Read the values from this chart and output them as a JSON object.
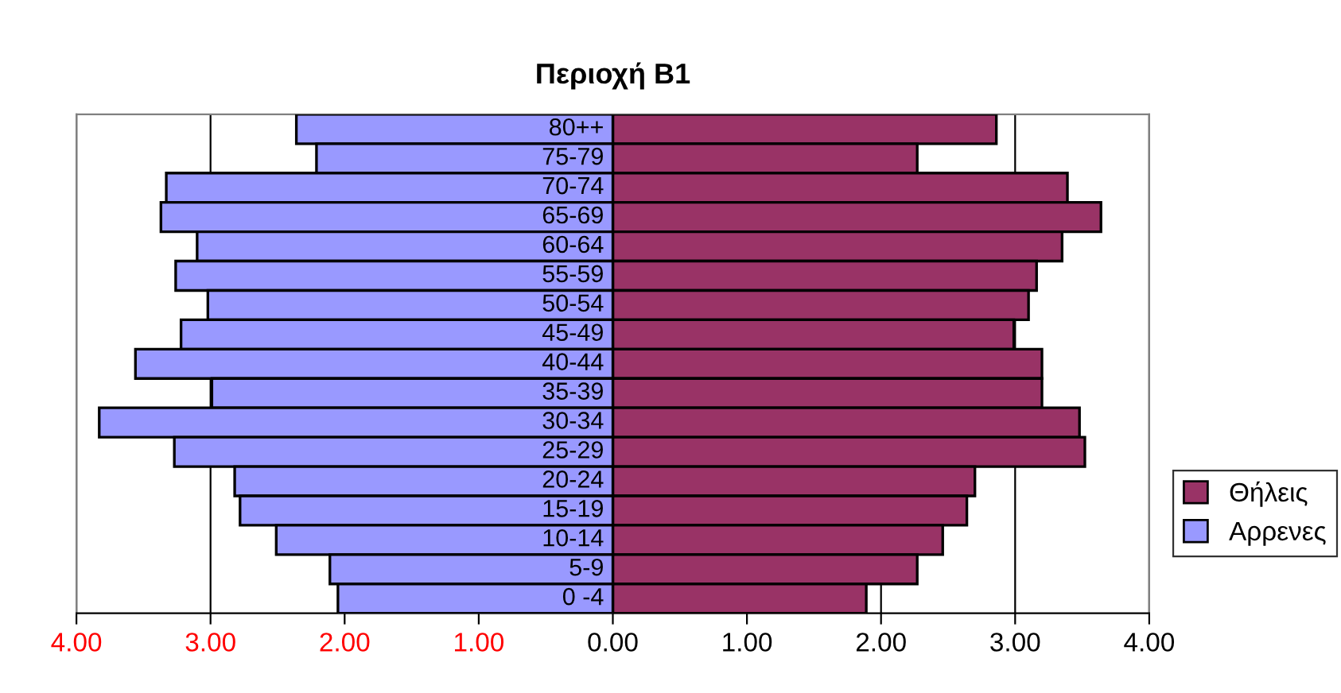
{
  "chart_data": {
    "type": "bar",
    "title": "Περιοχή Β1",
    "orientation": "horizontal",
    "categories": [
      "80++",
      "75-79",
      "70-74",
      "65-69",
      "60-64",
      "55-59",
      "50-54",
      "45-49",
      "40-44",
      "35-39",
      "30-34",
      "25-29",
      "20-24",
      "15-19",
      "10-14",
      "5-9",
      "0 -4"
    ],
    "series": [
      {
        "name": "Θήλεις",
        "color": "#993366",
        "values": [
          2.86,
          2.27,
          3.39,
          3.64,
          3.35,
          3.16,
          3.1,
          2.99,
          3.2,
          3.2,
          3.48,
          3.52,
          2.7,
          2.64,
          2.46,
          2.27,
          1.89
        ]
      },
      {
        "name": "Αρρενες",
        "color": "#9999ff",
        "values": [
          -2.36,
          -2.21,
          -3.33,
          -3.37,
          -3.1,
          -3.26,
          -3.02,
          -3.22,
          -3.56,
          -2.99,
          -3.83,
          -3.27,
          -2.82,
          -2.78,
          -2.51,
          -2.11,
          -2.05
        ]
      }
    ],
    "xlim": [
      -4,
      4
    ],
    "xticks": [
      {
        "value": -4,
        "label": "4.00"
      },
      {
        "value": -3,
        "label": "3.00"
      },
      {
        "value": -2,
        "label": "2.00"
      },
      {
        "value": -1,
        "label": "1.00"
      },
      {
        "value": 0,
        "label": "0.00"
      },
      {
        "value": 1,
        "label": "1.00"
      },
      {
        "value": 2,
        "label": "2.00"
      },
      {
        "value": 3,
        "label": "3.00"
      },
      {
        "value": 4,
        "label": "4.00"
      }
    ],
    "grid": "x",
    "legend": "right",
    "stacked": true
  }
}
